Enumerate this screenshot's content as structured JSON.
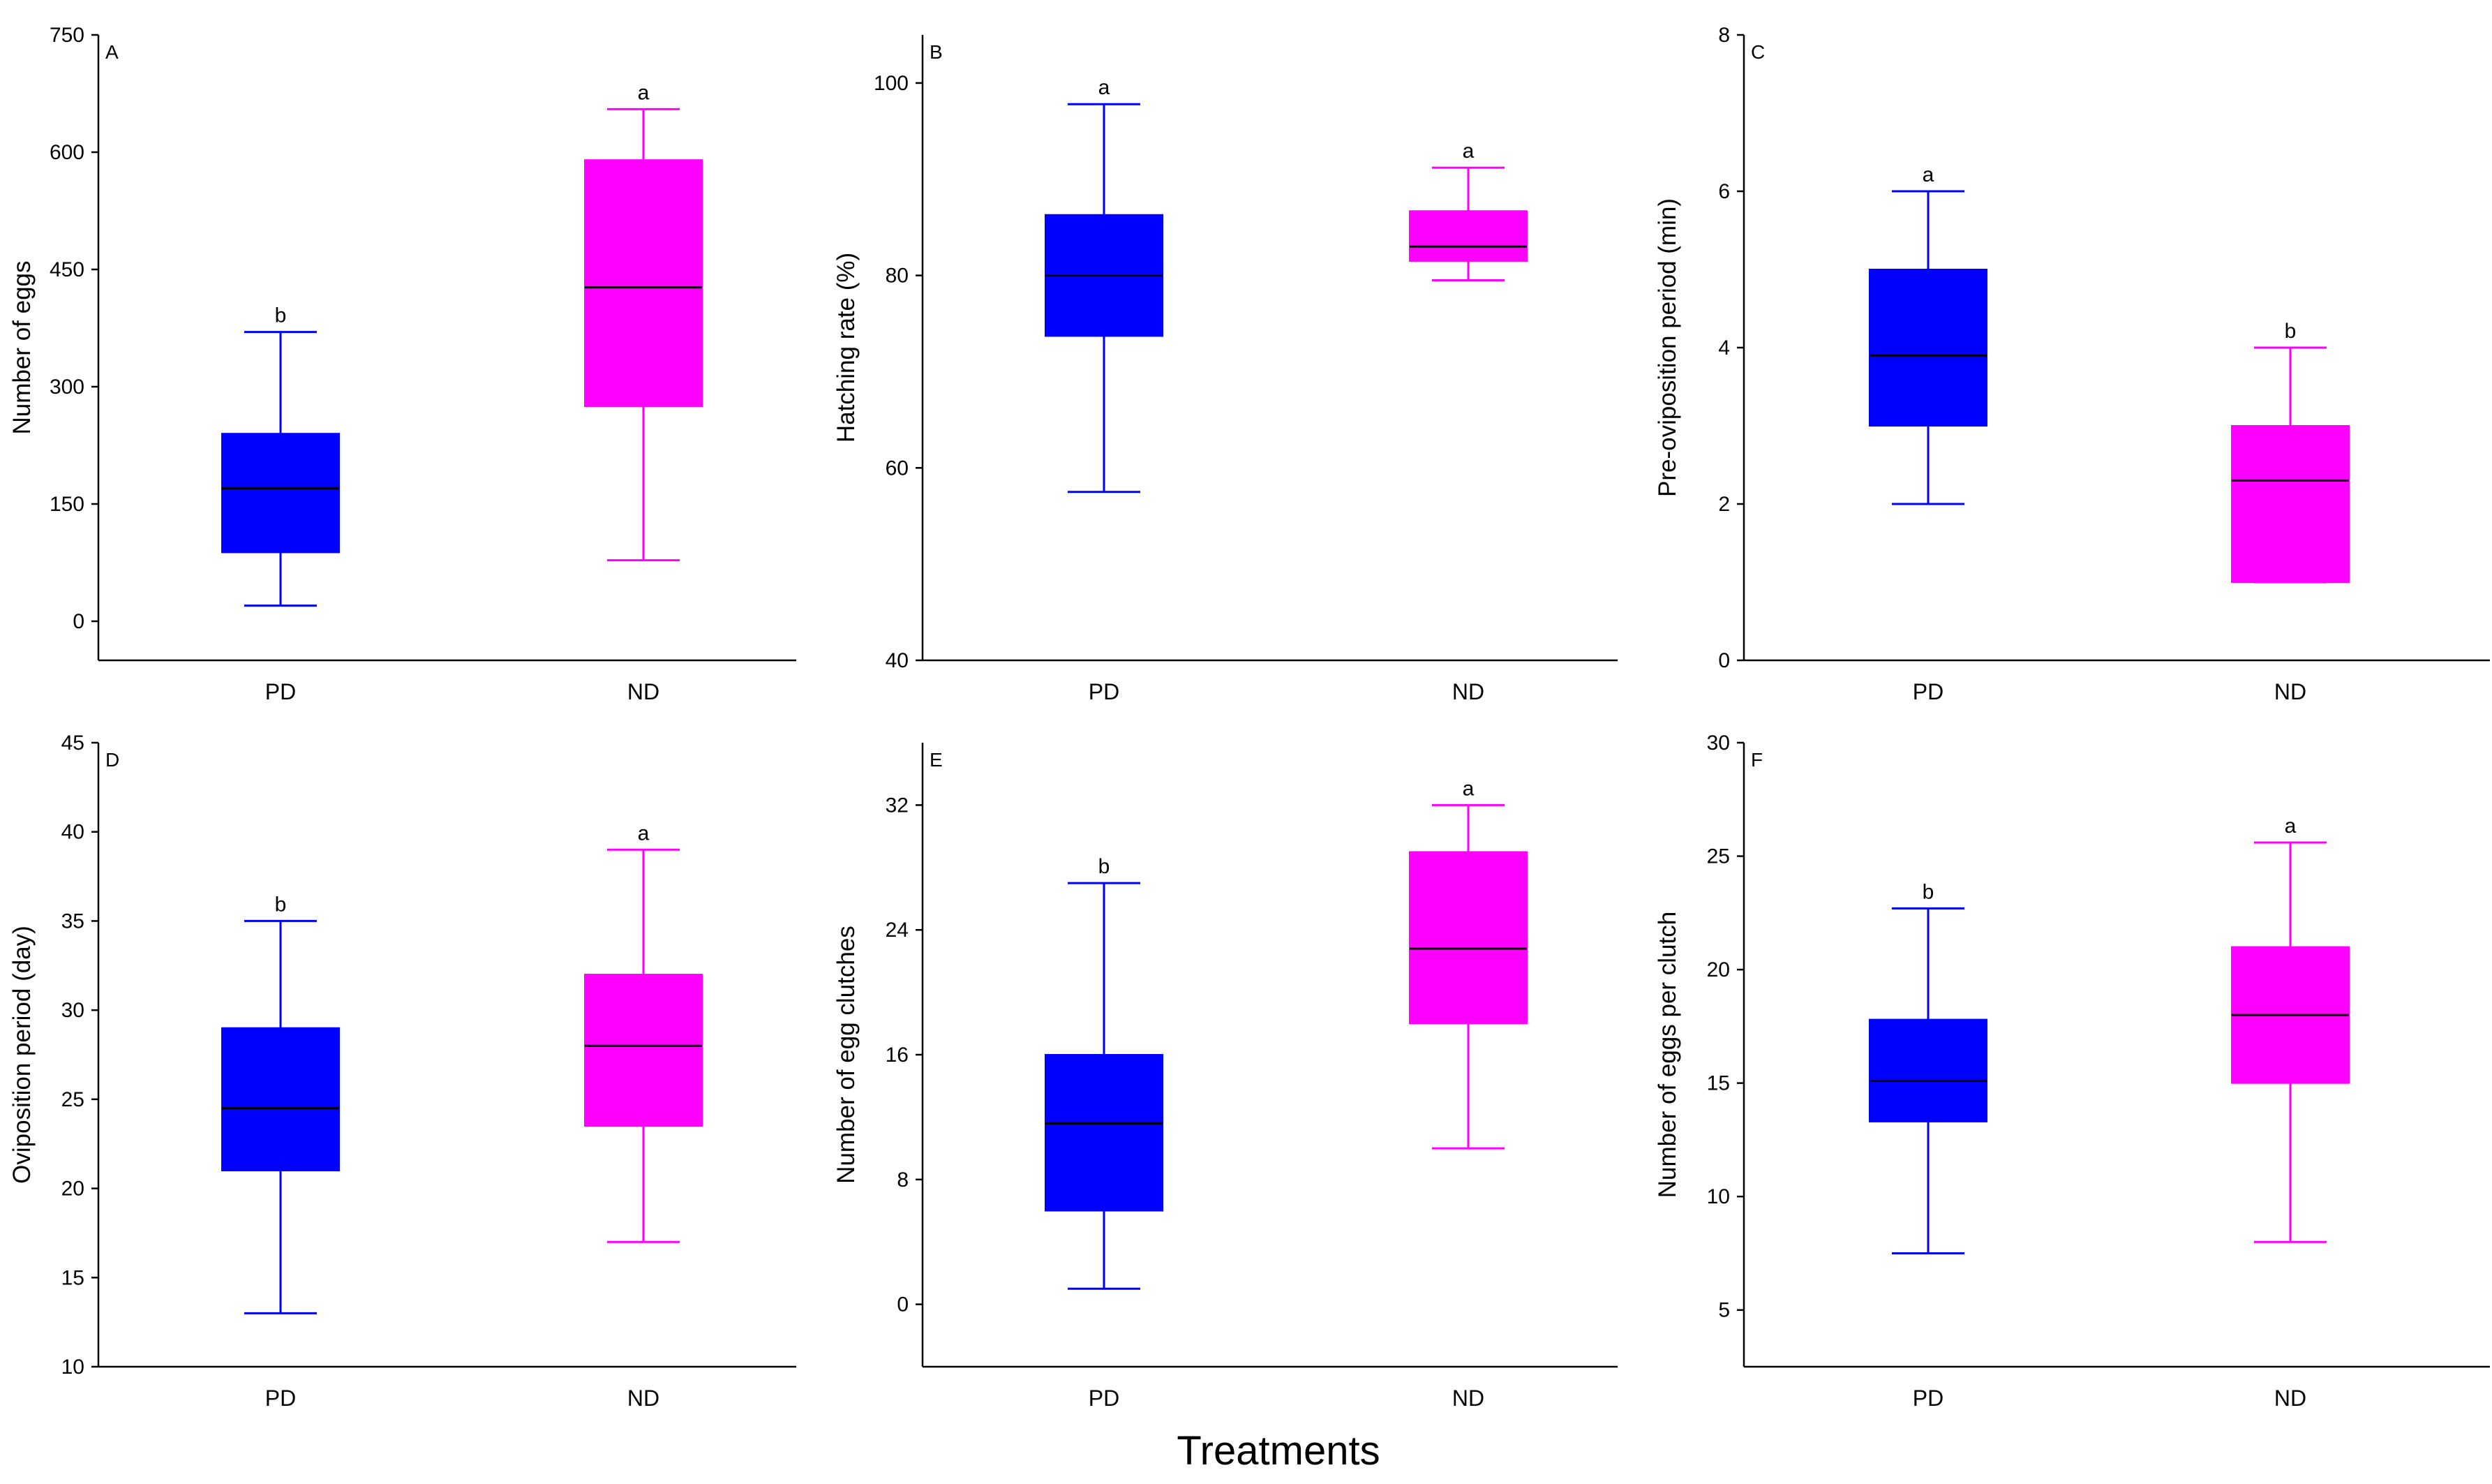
{
  "figure": {
    "xlabel": "Treatments",
    "colors": {
      "PD": "#0000ff",
      "ND": "#ff00ff"
    }
  },
  "chart_data": [
    {
      "type": "box",
      "panel": "A",
      "ylabel": "Number of eggs",
      "categories": [
        "PD",
        "ND"
      ],
      "ylim": [
        -50,
        750
      ],
      "yticks": [
        0,
        150,
        300,
        450,
        600,
        750
      ],
      "boxes": [
        {
          "category": "PD",
          "min": 20,
          "q1": 88,
          "median": 170,
          "q3": 240,
          "max": 370,
          "letter": "b"
        },
        {
          "category": "ND",
          "min": 78,
          "q1": 275,
          "median": 427,
          "q3": 590,
          "max": 655,
          "letter": "a"
        }
      ]
    },
    {
      "type": "box",
      "panel": "B",
      "ylabel": "Hatching rate (%)",
      "categories": [
        "PD",
        "ND"
      ],
      "ylim": [
        40,
        105
      ],
      "yticks": [
        40,
        60,
        80,
        100
      ],
      "boxes": [
        {
          "category": "PD",
          "min": 57.5,
          "q1": 73.7,
          "median": 80,
          "q3": 86.3,
          "max": 97.8,
          "letter": "a"
        },
        {
          "category": "ND",
          "min": 79.5,
          "q1": 81.5,
          "median": 83,
          "q3": 86.7,
          "max": 91.2,
          "letter": "a"
        }
      ]
    },
    {
      "type": "box",
      "panel": "C",
      "ylabel": "Pre-oviposition period (min)",
      "categories": [
        "PD",
        "ND"
      ],
      "ylim": [
        0,
        8
      ],
      "yticks": [
        0,
        2,
        4,
        6,
        8
      ],
      "boxes": [
        {
          "category": "PD",
          "min": 2,
          "q1": 3,
          "median": 3.9,
          "q3": 5,
          "max": 6,
          "letter": "a"
        },
        {
          "category": "ND",
          "min": 1,
          "q1": 1,
          "median": 2.3,
          "q3": 3,
          "max": 4,
          "letter": "b"
        }
      ]
    },
    {
      "type": "box",
      "panel": "D",
      "ylabel": "Oviposition period (day)",
      "categories": [
        "PD",
        "ND"
      ],
      "ylim": [
        10,
        45
      ],
      "yticks": [
        10,
        15,
        20,
        25,
        30,
        35,
        40,
        45
      ],
      "boxes": [
        {
          "category": "PD",
          "min": 13,
          "q1": 21,
          "median": 24.5,
          "q3": 29,
          "max": 35,
          "letter": "b"
        },
        {
          "category": "ND",
          "min": 17,
          "q1": 23.5,
          "median": 28,
          "q3": 32,
          "max": 39,
          "letter": "a"
        }
      ]
    },
    {
      "type": "box",
      "panel": "E",
      "ylabel": "Number of egg clutches",
      "categories": [
        "PD",
        "ND"
      ],
      "ylim": [
        -4,
        36
      ],
      "yticks": [
        0,
        8,
        16,
        24,
        32
      ],
      "boxes": [
        {
          "category": "PD",
          "min": 1,
          "q1": 6,
          "median": 11.6,
          "q3": 16,
          "max": 27,
          "letter": "b"
        },
        {
          "category": "ND",
          "min": 10,
          "q1": 18,
          "median": 22.8,
          "q3": 29,
          "max": 32,
          "letter": "a"
        }
      ]
    },
    {
      "type": "box",
      "panel": "F",
      "ylabel": "Number of eggs per clutch",
      "categories": [
        "PD",
        "ND"
      ],
      "ylim": [
        2.5,
        30
      ],
      "yticks": [
        5,
        10,
        15,
        20,
        25,
        30
      ],
      "boxes": [
        {
          "category": "PD",
          "min": 7.5,
          "q1": 13.3,
          "median": 15.1,
          "q3": 17.8,
          "max": 22.7,
          "letter": "b"
        },
        {
          "category": "ND",
          "min": 8,
          "q1": 15,
          "median": 18,
          "q3": 21,
          "max": 25.6,
          "letter": "a"
        }
      ]
    }
  ]
}
